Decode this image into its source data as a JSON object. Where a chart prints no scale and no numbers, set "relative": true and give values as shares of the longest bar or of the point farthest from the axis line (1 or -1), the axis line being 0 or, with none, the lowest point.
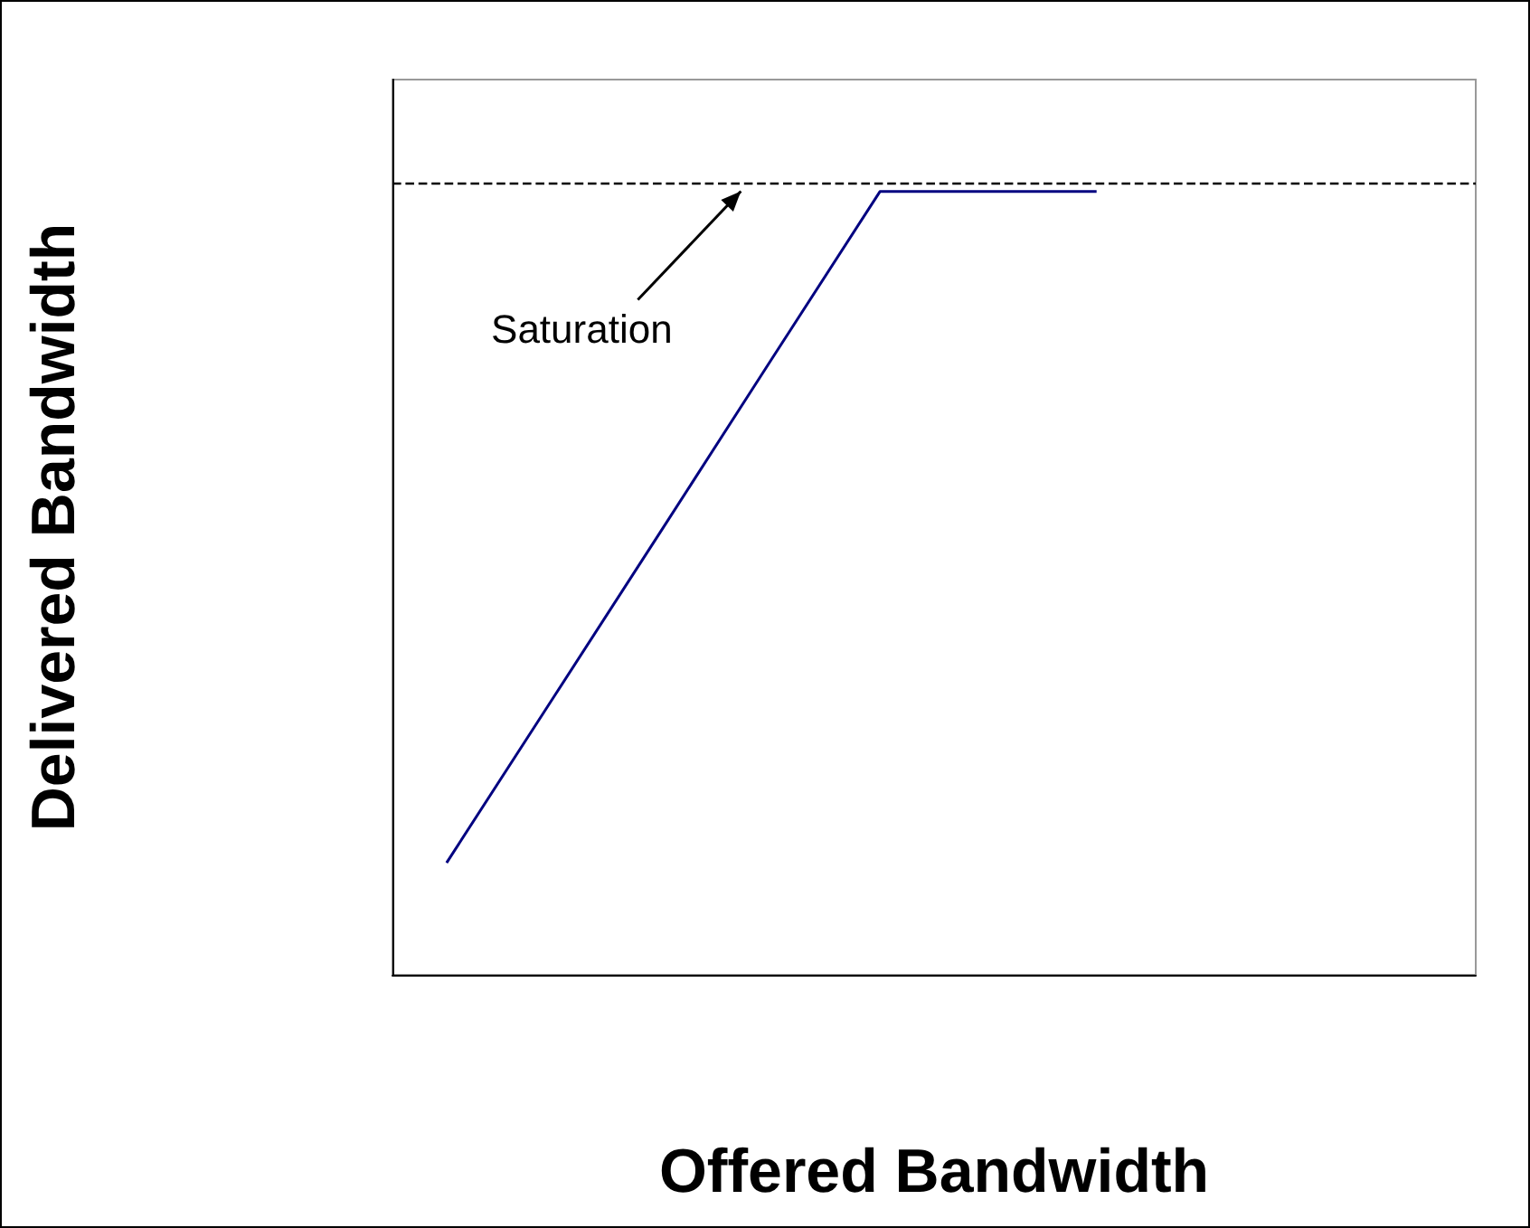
{
  "chart_data": {
    "type": "line",
    "xlabel": "Offered Bandwidth",
    "ylabel": "Delivered Bandwidth",
    "relative": true,
    "categories": [
      null,
      null,
      null,
      null,
      null,
      null,
      null,
      null,
      null,
      null
    ],
    "grid": false,
    "marker": "none",
    "line_style": "solid",
    "series": [
      {
        "color": "#000080",
        "values": [
          0.143,
          0.357,
          0.571,
          0.786,
          1,
          1,
          1,
          null,
          null,
          null
        ]
      }
    ],
    "ref_lines": [
      {
        "axis": "y",
        "value": 1.012,
        "color": "#000000",
        "line_style": "dashed"
      }
    ],
    "annotations": [
      "Saturation"
    ]
  }
}
